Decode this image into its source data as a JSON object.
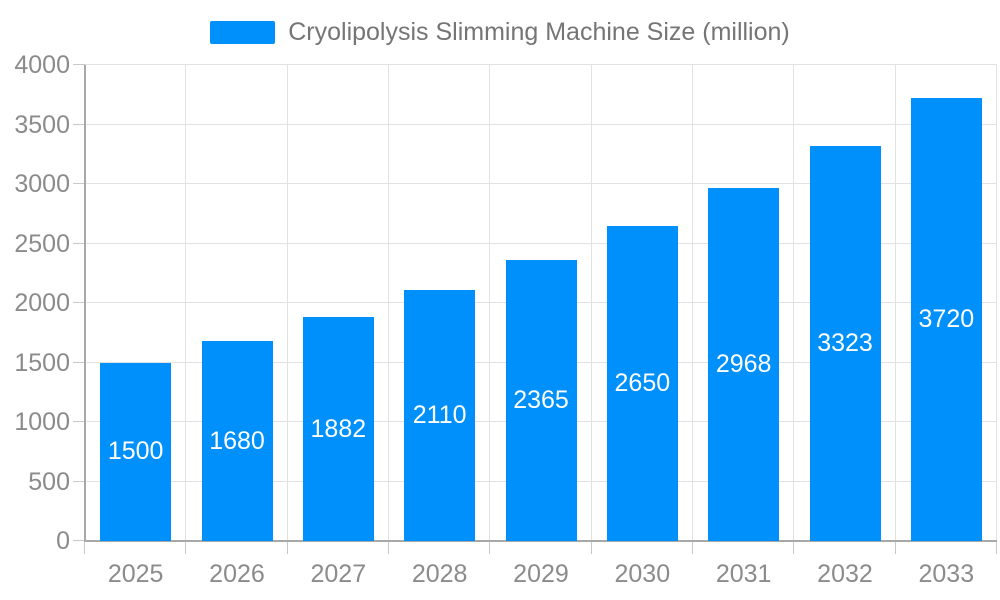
{
  "legend": {
    "label": "Cryolipolysis Slimming Machine Size (million)"
  },
  "colors": {
    "bar": "#0090fb",
    "grid": "#e2e2e2",
    "axis_line": "#a8a8a8",
    "tick": "#c8c8c8",
    "axis_label": "#8b8b8b",
    "legend_text": "#757575",
    "value_label": "#ffffff",
    "background": "#ffffff"
  },
  "chart_data": {
    "type": "bar",
    "title": "Cryolipolysis Slimming Machine Size (million)",
    "legend_entries": [
      "Cryolipolysis Slimming Machine Size (million)"
    ],
    "legend_position": "top-center",
    "categories": [
      "2025",
      "2026",
      "2027",
      "2028",
      "2029",
      "2030",
      "2031",
      "2032",
      "2033"
    ],
    "values": [
      1500,
      1680,
      1882,
      2110,
      2365,
      2650,
      2968,
      3323,
      3720
    ],
    "value_labels_shown": true,
    "value_label_position": "inside-center",
    "xlabel": "",
    "ylabel": "",
    "ylim": [
      0,
      4000
    ],
    "ytick_step": 500,
    "yticks": [
      0,
      500,
      1000,
      1500,
      2000,
      2500,
      3000,
      3500,
      4000
    ],
    "grid": true
  }
}
